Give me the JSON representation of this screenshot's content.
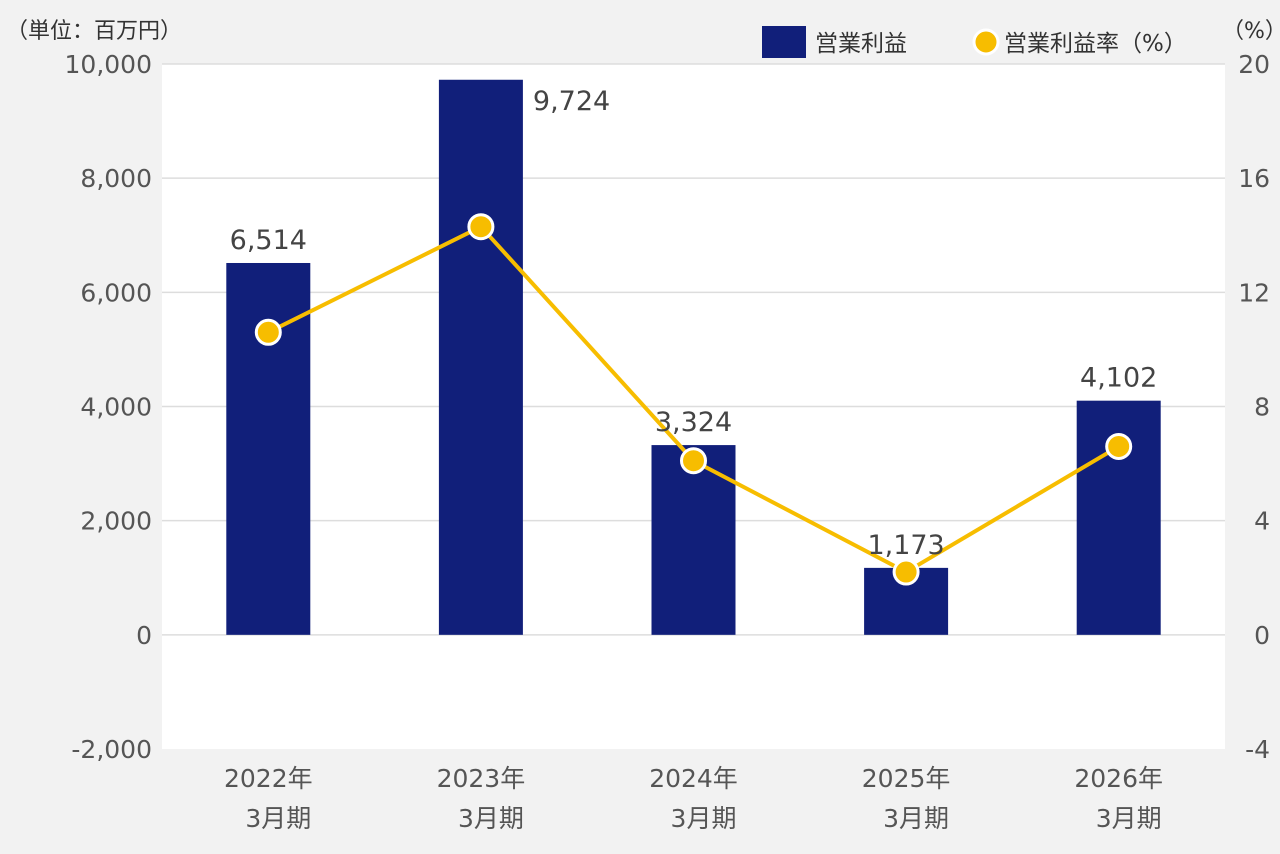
{
  "chart_data": {
    "type": "bar+line",
    "left_unit_label": "（単位：百万円）",
    "right_unit_label": "（%）",
    "categories": [
      [
        "2022年",
        "3月期"
      ],
      [
        "2023年",
        "3月期"
      ],
      [
        "2024年",
        "3月期"
      ],
      [
        "2025年",
        "3月期"
      ],
      [
        "2026年",
        "3月期"
      ]
    ],
    "bar_series": {
      "name": "営業利益",
      "values": [
        6514,
        9724,
        3324,
        1173,
        4102
      ],
      "value_labels": [
        "6,514",
        "9,724",
        "3,324",
        "1,173",
        "4,102"
      ],
      "color": "#111f7a"
    },
    "line_series": {
      "name": "営業利益率（%）",
      "values": [
        10.6,
        14.3,
        6.1,
        2.2,
        6.6
      ],
      "color": "#f7bd00"
    },
    "y_left": {
      "min": -2000,
      "max": 10000,
      "ticks": [
        -2000,
        0,
        2000,
        4000,
        6000,
        8000,
        10000
      ],
      "tick_labels": [
        "-2,000",
        "0",
        "2,000",
        "4,000",
        "6,000",
        "8,000",
        "10,000"
      ]
    },
    "y_right": {
      "min": -4,
      "max": 20,
      "ticks": [
        -4,
        0,
        4,
        8,
        12,
        16,
        20
      ],
      "tick_labels": [
        "-4",
        "0",
        "4",
        "8",
        "12",
        "16",
        "20"
      ]
    },
    "legend_position": "top-right",
    "grid": true
  }
}
